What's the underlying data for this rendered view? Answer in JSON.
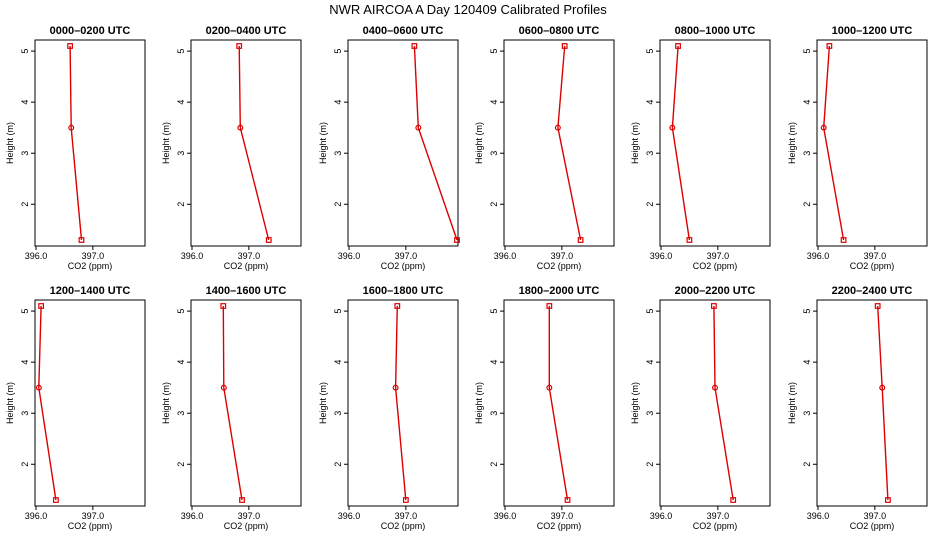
{
  "title": "NWR AIRCOA A  Day 120409  Calibrated Profiles",
  "chart_data": {
    "type": "line",
    "xlabel": "CO2 (ppm)",
    "ylabel": "Height (m)",
    "xlim": [
      396.0,
      397.9
    ],
    "ylim": [
      1.3,
      5.1
    ],
    "xticks": [
      "396.0",
      "397.0"
    ],
    "xtick_values": [
      396.0,
      397.0
    ],
    "yticks": [
      "2",
      "3",
      "4",
      "5"
    ],
    "ytick_values": [
      2,
      3,
      4,
      5
    ],
    "line_color": "#dd0000",
    "heights": [
      5.1,
      3.5,
      1.3
    ],
    "panels": [
      {
        "title": "0000–0200 UTC",
        "co2": [
          396.6,
          396.62,
          396.8
        ]
      },
      {
        "title": "0200–0400 UTC",
        "co2": [
          396.83,
          396.85,
          397.35
        ]
      },
      {
        "title": "0400–0600 UTC",
        "co2": [
          397.15,
          397.22,
          397.9
        ]
      },
      {
        "title": "0600–0800 UTC",
        "co2": [
          397.05,
          396.93,
          397.33
        ]
      },
      {
        "title": "0800–1000 UTC",
        "co2": [
          396.3,
          396.2,
          396.5
        ]
      },
      {
        "title": "1000–1200 UTC",
        "co2": [
          396.2,
          396.1,
          396.45
        ]
      },
      {
        "title": "1200–1400 UTC",
        "co2": [
          396.09,
          396.05,
          396.35
        ]
      },
      {
        "title": "1400–1600 UTC",
        "co2": [
          396.55,
          396.56,
          396.88
        ]
      },
      {
        "title": "1600–1800 UTC",
        "co2": [
          396.85,
          396.82,
          397.0
        ]
      },
      {
        "title": "1800–2000 UTC",
        "co2": [
          396.78,
          396.78,
          397.1
        ]
      },
      {
        "title": "2000–2200 UTC",
        "co2": [
          396.93,
          396.95,
          397.27
        ]
      },
      {
        "title": "2200–2400 UTC",
        "co2": [
          397.05,
          397.13,
          397.23
        ]
      }
    ]
  }
}
